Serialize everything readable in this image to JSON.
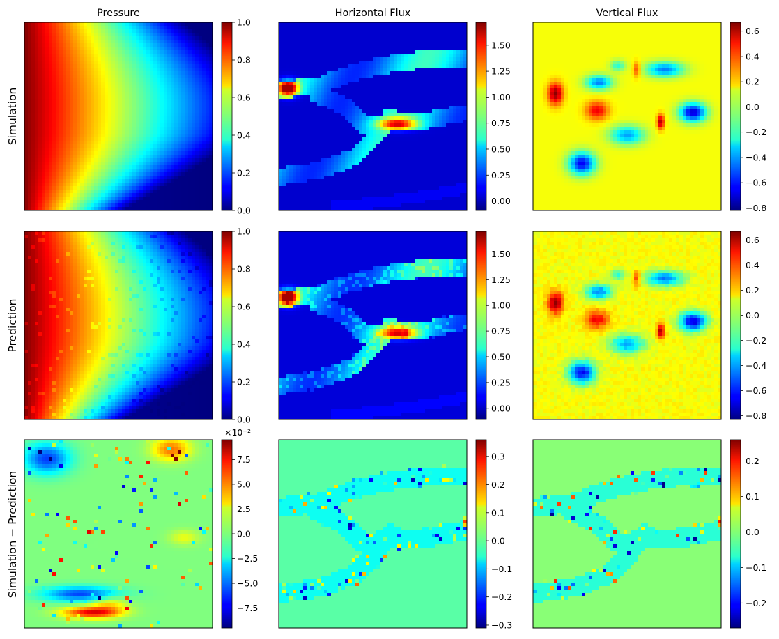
{
  "figure": {
    "column_titles": [
      "Pressure",
      "Horizontal Flux",
      "Vertical Flux"
    ],
    "row_labels": [
      "Simulation",
      "Prediction",
      "Simulation − Prediction"
    ],
    "colormap": "jet"
  },
  "chart_data": [
    {
      "type": "heatmap",
      "title": "Pressure",
      "row": "Simulation",
      "field": "pressure",
      "colorbar": {
        "range": [
          0.0,
          1.0
        ],
        "ticks": [
          "0.0",
          "0.2",
          "0.4",
          "0.6",
          "0.8",
          "1.0"
        ],
        "tick_values": [
          0.0,
          0.2,
          0.4,
          0.6,
          0.8,
          1.0
        ]
      }
    },
    {
      "type": "heatmap",
      "title": "Horizontal Flux",
      "row": "Simulation",
      "field": "hflux",
      "colorbar": {
        "range": [
          -0.09,
          1.72
        ],
        "ticks": [
          "0.00",
          "0.25",
          "0.50",
          "0.75",
          "1.00",
          "1.25",
          "1.50"
        ],
        "tick_values": [
          0.0,
          0.25,
          0.5,
          0.75,
          1.0,
          1.25,
          1.5
        ]
      }
    },
    {
      "type": "heatmap",
      "title": "Vertical Flux",
      "row": "Simulation",
      "field": "vflux",
      "colorbar": {
        "range": [
          -0.82,
          0.67
        ],
        "ticks": [
          "−0.8",
          "−0.6",
          "−0.4",
          "−0.2",
          "0.0",
          "0.2",
          "0.4",
          "0.6"
        ],
        "tick_values": [
          -0.8,
          -0.6,
          -0.4,
          -0.2,
          0.0,
          0.2,
          0.4,
          0.6
        ]
      }
    },
    {
      "type": "heatmap",
      "row": "Prediction",
      "field": "pressure",
      "colorbar": {
        "range": [
          0.0,
          1.0
        ],
        "ticks": [
          "0.0",
          "0.2",
          "0.4",
          "0.6",
          "0.8",
          "1.0"
        ],
        "tick_values": [
          0.0,
          0.2,
          0.4,
          0.6,
          0.8,
          1.0
        ]
      }
    },
    {
      "type": "heatmap",
      "row": "Prediction",
      "field": "hflux",
      "colorbar": {
        "range": [
          -0.11,
          1.72
        ],
        "ticks": [
          "0.00",
          "0.25",
          "0.50",
          "0.75",
          "1.00",
          "1.25",
          "1.50"
        ],
        "tick_values": [
          0.0,
          0.25,
          0.5,
          0.75,
          1.0,
          1.25,
          1.5
        ]
      }
    },
    {
      "type": "heatmap",
      "row": "Prediction",
      "field": "vflux",
      "colorbar": {
        "range": [
          -0.83,
          0.67
        ],
        "ticks": [
          "−0.8",
          "−0.6",
          "−0.4",
          "−0.2",
          "0.0",
          "0.2",
          "0.4",
          "0.6"
        ],
        "tick_values": [
          -0.8,
          -0.6,
          -0.4,
          -0.2,
          0.0,
          0.2,
          0.4,
          0.6
        ]
      }
    },
    {
      "type": "heatmap",
      "row": "Simulation − Prediction",
      "field": "pressure_diff",
      "colorbar": {
        "range": [
          -9.5,
          9.5
        ],
        "multiplier": "×10⁻²",
        "ticks": [
          "−7.5",
          "−5.0",
          "−2.5",
          "0.0",
          "2.5",
          "5.0",
          "7.5"
        ],
        "tick_values": [
          -7.5,
          -5.0,
          -2.5,
          0.0,
          2.5,
          5.0,
          7.5
        ]
      }
    },
    {
      "type": "heatmap",
      "row": "Simulation − Prediction",
      "field": "hflux_diff",
      "colorbar": {
        "range": [
          -0.31,
          0.36
        ],
        "ticks": [
          "−0.3",
          "−0.2",
          "−0.1",
          "0.0",
          "0.1",
          "0.2",
          "0.3"
        ],
        "tick_values": [
          -0.3,
          -0.2,
          -0.1,
          0.0,
          0.1,
          0.2,
          0.3
        ]
      }
    },
    {
      "type": "heatmap",
      "row": "Simulation − Prediction",
      "field": "vflux_diff",
      "colorbar": {
        "range": [
          -0.27,
          0.26
        ],
        "ticks": [
          "−0.2",
          "−0.1",
          "0.0",
          "0.1",
          "0.2"
        ],
        "tick_values": [
          -0.2,
          -0.1,
          0.0,
          0.1,
          0.2
        ]
      }
    }
  ]
}
